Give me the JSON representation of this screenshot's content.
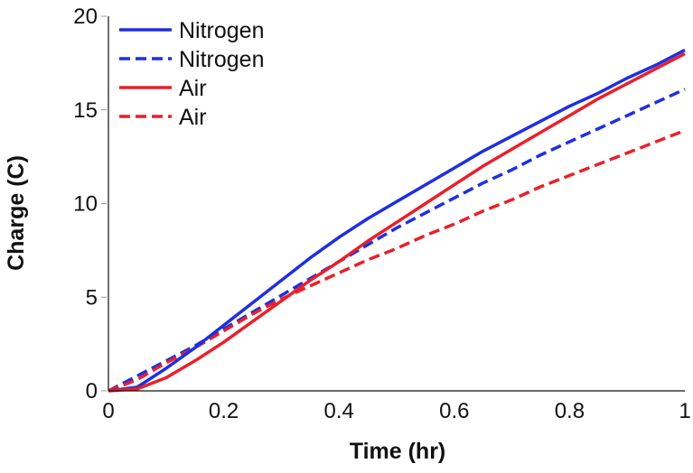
{
  "chart_data": {
    "type": "line",
    "xlabel": "Time (hr)",
    "ylabel": "Charge (C)",
    "xlim": [
      0,
      1
    ],
    "ylim": [
      0,
      20
    ],
    "x_ticks": [
      "0",
      "0.2",
      "0.4",
      "0.6",
      "0.8",
      "1"
    ],
    "y_ticks": [
      "0",
      "5",
      "10",
      "15",
      "20"
    ],
    "grid": false,
    "legend_position": "top-left",
    "series": [
      {
        "name": "Nitrogen",
        "color": "#1f2fe0",
        "dash": "solid",
        "x": [
          0,
          0.05,
          0.1,
          0.15,
          0.2,
          0.25,
          0.3,
          0.35,
          0.4,
          0.45,
          0.5,
          0.55,
          0.6,
          0.65,
          0.7,
          0.75,
          0.8,
          0.85,
          0.9,
          0.95,
          1.0
        ],
        "y": [
          0,
          0.2,
          1.2,
          2.3,
          3.5,
          4.7,
          5.9,
          7.1,
          8.2,
          9.2,
          10.1,
          11.0,
          11.9,
          12.8,
          13.6,
          14.4,
          15.2,
          15.9,
          16.7,
          17.4,
          18.2
        ]
      },
      {
        "name": "Nitrogen",
        "color": "#1f2fe0",
        "dash": "dashed",
        "x": [
          0,
          0.05,
          0.1,
          0.15,
          0.2,
          0.25,
          0.3,
          0.35,
          0.4,
          0.45,
          0.5,
          0.55,
          0.6,
          0.65,
          0.7,
          0.75,
          0.8,
          0.85,
          0.9,
          0.95,
          1.0
        ],
        "y": [
          0,
          0.8,
          1.6,
          2.4,
          3.3,
          4.2,
          5.1,
          6.0,
          6.9,
          7.8,
          8.7,
          9.5,
          10.3,
          11.1,
          11.8,
          12.6,
          13.3,
          14.0,
          14.7,
          15.4,
          16.1
        ]
      },
      {
        "name": "Air",
        "color": "#e8202a",
        "dash": "solid",
        "x": [
          0,
          0.05,
          0.1,
          0.15,
          0.2,
          0.25,
          0.3,
          0.35,
          0.4,
          0.45,
          0.5,
          0.55,
          0.6,
          0.65,
          0.7,
          0.75,
          0.8,
          0.85,
          0.9,
          0.95,
          1.0
        ],
        "y": [
          0,
          0.1,
          0.7,
          1.6,
          2.6,
          3.7,
          4.8,
          5.9,
          6.9,
          8.0,
          9.0,
          10.0,
          11.0,
          12.0,
          12.9,
          13.8,
          14.7,
          15.6,
          16.4,
          17.2,
          18.0
        ]
      },
      {
        "name": "Air",
        "color": "#e8202a",
        "dash": "dashed",
        "x": [
          0,
          0.05,
          0.1,
          0.15,
          0.2,
          0.25,
          0.3,
          0.35,
          0.4,
          0.45,
          0.5,
          0.55,
          0.6,
          0.65,
          0.7,
          0.75,
          0.8,
          0.85,
          0.9,
          0.95,
          1.0
        ],
        "y": [
          0,
          0.6,
          1.5,
          2.3,
          3.2,
          4.1,
          4.9,
          5.6,
          6.3,
          7.0,
          7.6,
          8.3,
          8.9,
          9.6,
          10.2,
          10.9,
          11.5,
          12.1,
          12.7,
          13.3,
          13.9
        ]
      }
    ]
  }
}
